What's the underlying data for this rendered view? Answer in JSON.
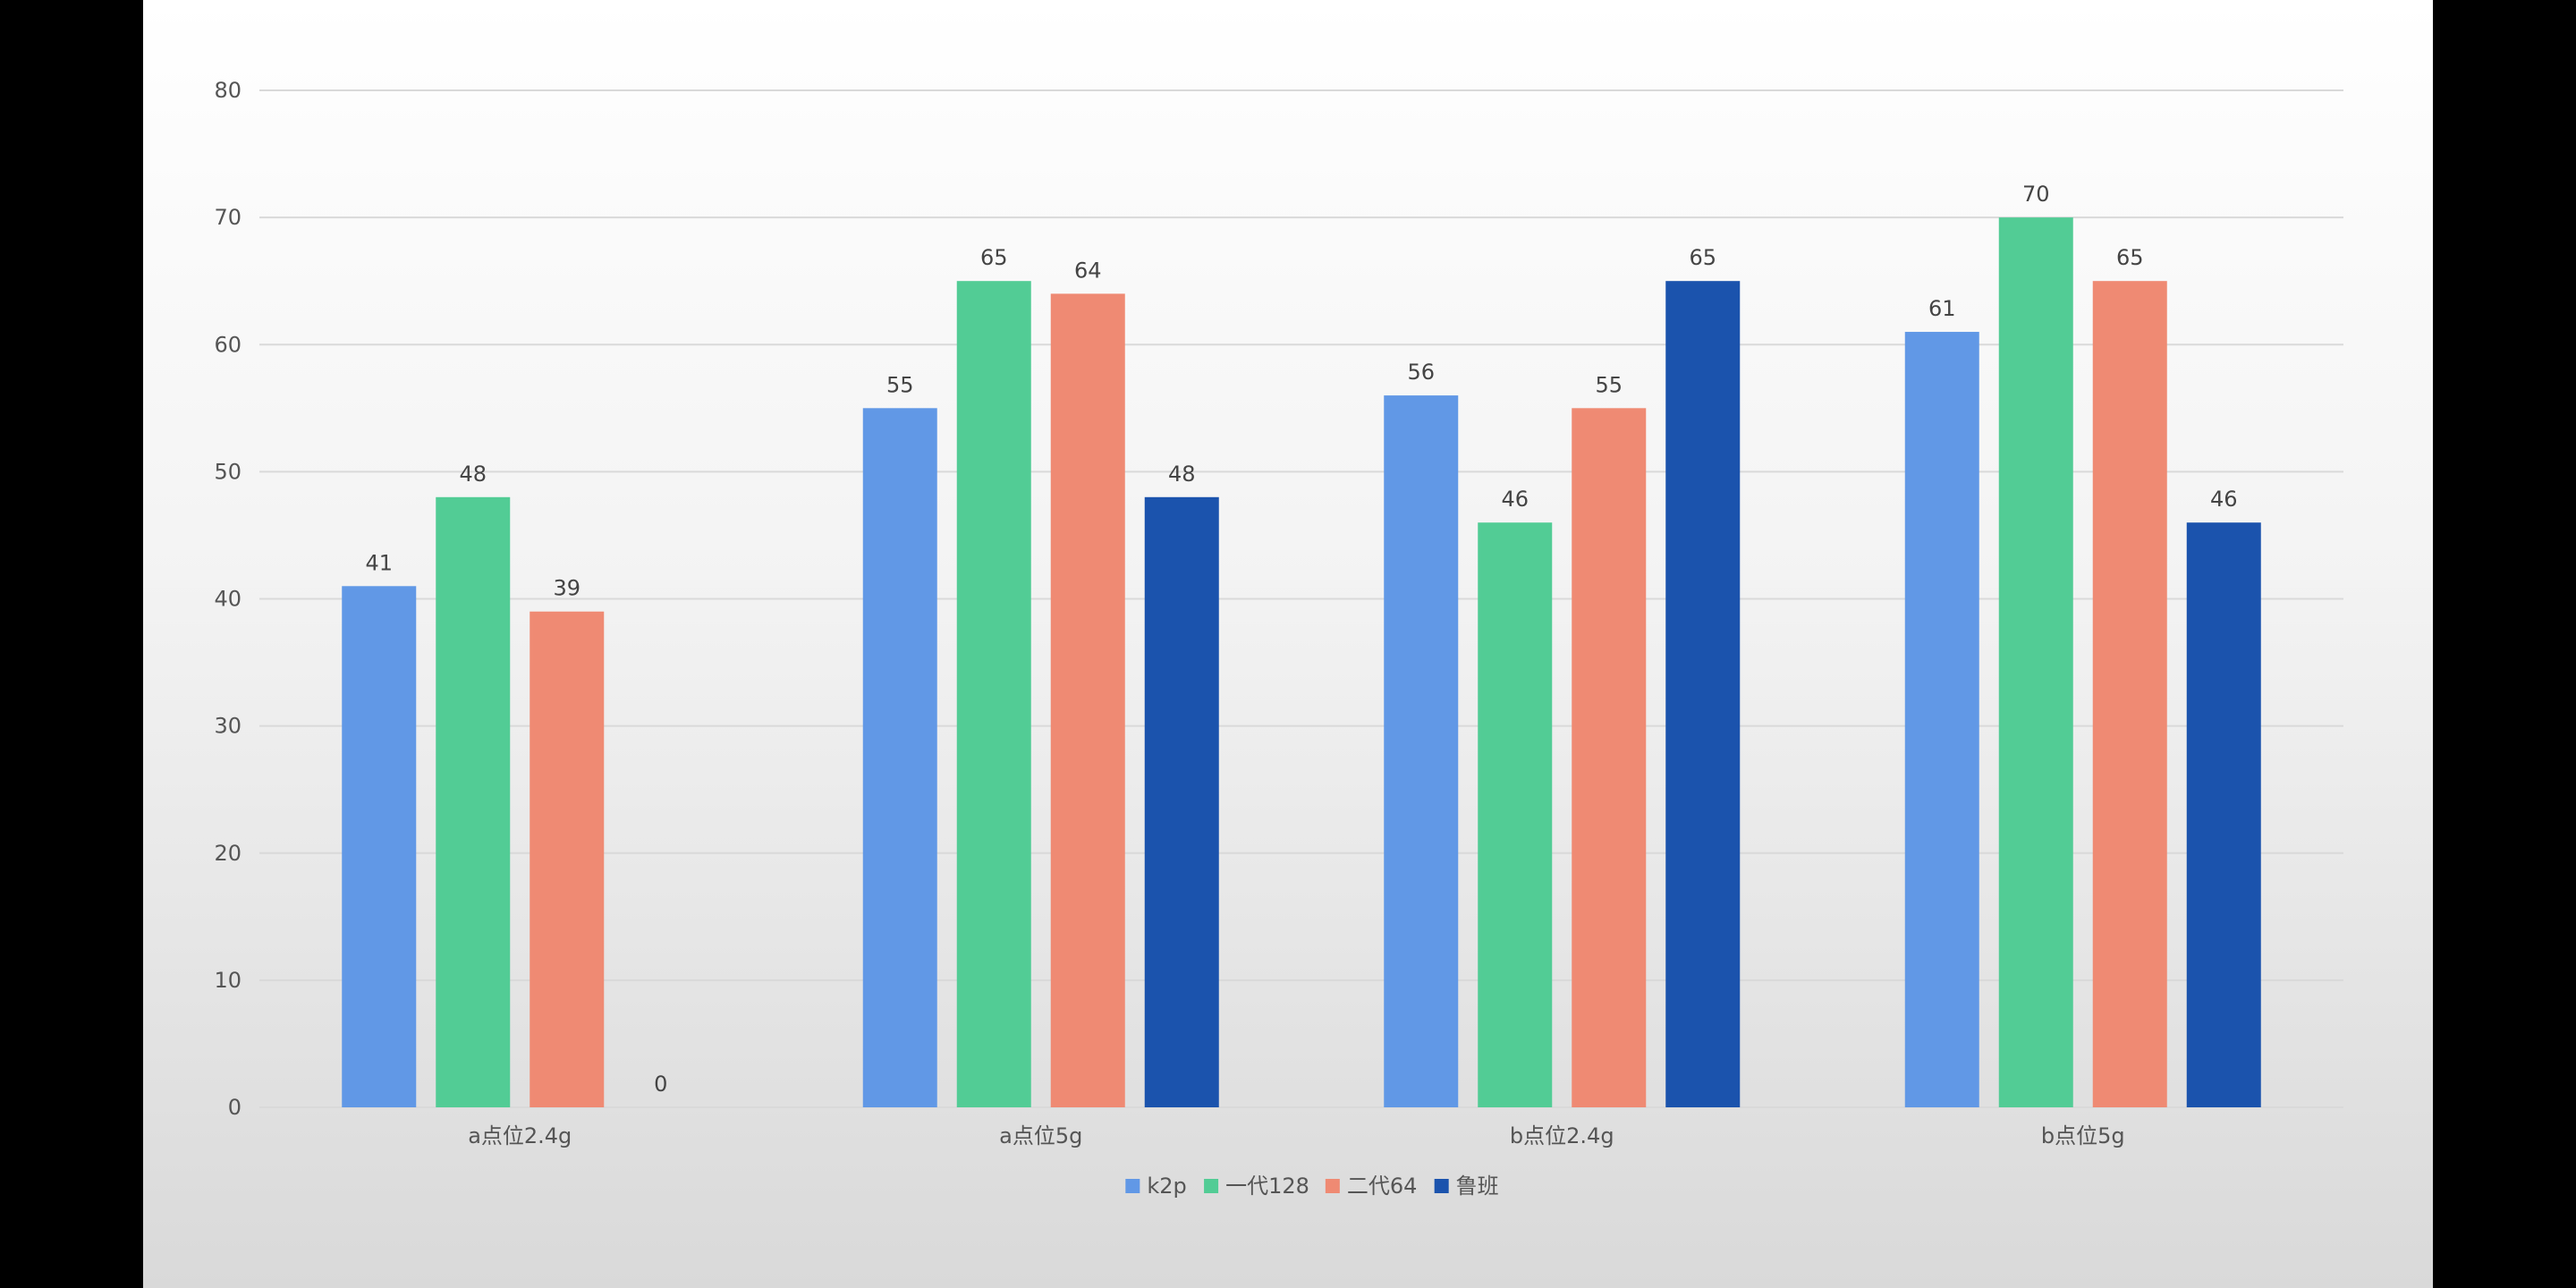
{
  "colors": {
    "k2p": "#6198E6",
    "yidai128": "#52CC95",
    "erdai64": "#EF8A73",
    "luban": "#1B53AD",
    "gridline": "#D9D9D9",
    "axis_text": "#555555"
  },
  "chart_data": {
    "type": "bar",
    "title": "",
    "xlabel": "",
    "ylabel": "",
    "ylim": [
      0,
      80
    ],
    "yticks": [
      "0",
      "10",
      "20",
      "30",
      "40",
      "50",
      "60",
      "70",
      "80"
    ],
    "grid": true,
    "legend_position": "bottom-center",
    "categories": [
      "a点位2.4g",
      "a点位5g",
      "b点位2.4g",
      "b点位5g"
    ],
    "series": [
      {
        "name": "k2p",
        "values": [
          41,
          55,
          56,
          61
        ]
      },
      {
        "name": "一代128",
        "values": [
          48,
          65,
          46,
          70
        ]
      },
      {
        "name": "二代64",
        "values": [
          39,
          64,
          55,
          65
        ]
      },
      {
        "name": "鲁班",
        "values": [
          0,
          48,
          65,
          46
        ]
      }
    ]
  }
}
